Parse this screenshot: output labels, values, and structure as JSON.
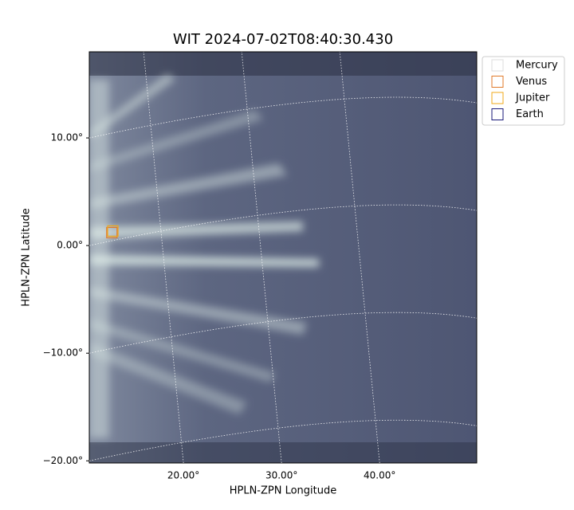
{
  "chart_data": {
    "type": "image-plot",
    "title": "WIT 2024-07-02T08:40:30.430",
    "xlabel": "HPLN-ZPN Longitude",
    "ylabel": "HPLN-ZPN Latitude",
    "xlim": [
      10.4,
      49.9
    ],
    "ylim": [
      -20.2,
      18
    ],
    "xticks": [
      {
        "value": 20,
        "label": "20.00°"
      },
      {
        "value": 30,
        "label": "30.00°"
      },
      {
        "value": 40,
        "label": "40.00°"
      }
    ],
    "yticks": [
      {
        "value": 10,
        "label": "10.00°"
      },
      {
        "value": 0,
        "label": "0.00°"
      },
      {
        "value": -10,
        "label": "−10.00°"
      },
      {
        "value": -20,
        "label": "−20.00°"
      }
    ],
    "grid": true,
    "legend": "upper-right",
    "series": [
      {
        "name": "Mercury",
        "color": "#dddddd",
        "x": [],
        "y": []
      },
      {
        "name": "Venus",
        "color": "#e07a2a",
        "x": [
          12.7
        ],
        "y": [
          1.2
        ]
      },
      {
        "name": "Jupiter",
        "color": "#f0a818",
        "x": [
          12.8
        ],
        "y": [
          1.35
        ]
      },
      {
        "name": "Earth",
        "color": "#1a1a7a",
        "x": [],
        "y": []
      }
    ]
  }
}
